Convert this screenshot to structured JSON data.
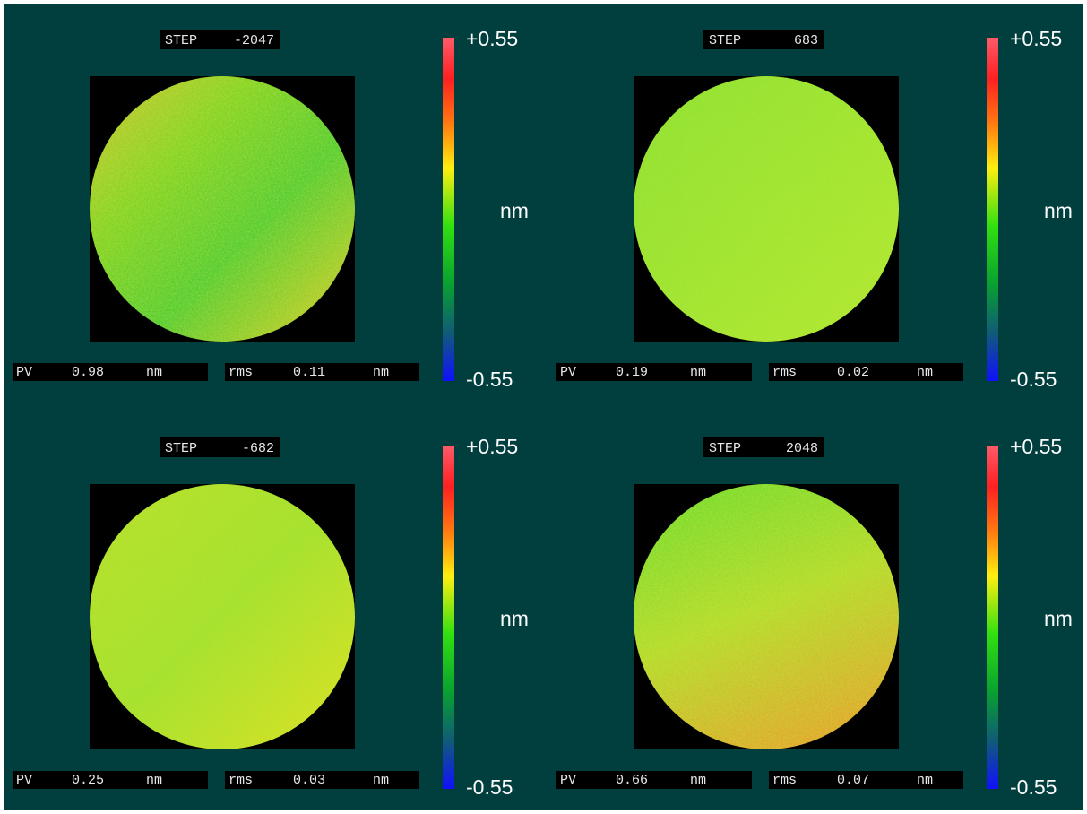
{
  "panels": [
    {
      "step_label": "STEP",
      "step": "-2047",
      "scale_max": "+0.55",
      "scale_min": "-0.55",
      "scale_unit": "nm",
      "pv_label": "PV",
      "pv": "0.98",
      "pv_unit": "nm",
      "rms_label": "rms",
      "rms": "0.11",
      "rms_unit": "nm"
    },
    {
      "step_label": "STEP",
      "step": "683",
      "scale_max": "+0.55",
      "scale_min": "-0.55",
      "scale_unit": "nm",
      "pv_label": "PV",
      "pv": "0.19",
      "pv_unit": "nm",
      "rms_label": "rms",
      "rms": "0.02",
      "rms_unit": "nm"
    },
    {
      "step_label": "STEP",
      "step": "-682",
      "scale_max": "+0.55",
      "scale_min": "-0.55",
      "scale_unit": "nm",
      "pv_label": "PV",
      "pv": "0.25",
      "pv_unit": "nm",
      "rms_label": "rms",
      "rms": "0.03",
      "rms_unit": "nm"
    },
    {
      "step_label": "STEP",
      "step": "2048",
      "scale_max": "+0.55",
      "scale_min": "-0.55",
      "scale_unit": "nm",
      "pv_label": "PV",
      "pv": "0.66",
      "pv_unit": "nm",
      "rms_label": "rms",
      "rms": "0.07",
      "rms_unit": "nm"
    }
  ]
}
